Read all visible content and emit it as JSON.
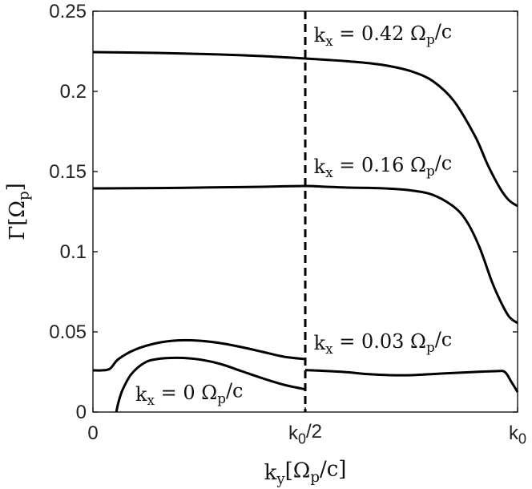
{
  "chart_data": {
    "type": "line",
    "xlabel": "k_y[Ω_p/c]",
    "ylabel": "Γ[Ω_p]",
    "xlim": [
      0,
      1
    ],
    "ylim": [
      0,
      0.25
    ],
    "x_ticks": [
      {
        "value": 0,
        "label": "0"
      },
      {
        "value": 0.5,
        "label": "k0/2"
      },
      {
        "value": 1,
        "label": "k0"
      }
    ],
    "y_ticks": [
      {
        "value": 0,
        "label": "0"
      },
      {
        "value": 0.05,
        "label": "0.05"
      },
      {
        "value": 0.1,
        "label": "0.1"
      },
      {
        "value": 0.15,
        "label": "0.15"
      },
      {
        "value": 0.2,
        "label": "0.2"
      },
      {
        "value": 0.25,
        "label": "0.25"
      }
    ],
    "grid": false,
    "box": true,
    "vline": {
      "x": 0.5,
      "style": "dashed"
    },
    "series": [
      {
        "name": "k_x = 0.42 Ω_p/c",
        "x": [
          0,
          0.1,
          0.2,
          0.3,
          0.4,
          0.5,
          0.55,
          0.6,
          0.65,
          0.7,
          0.75,
          0.8,
          0.85,
          0.9,
          0.93,
          0.96,
          0.98,
          1.0
        ],
        "y": [
          0.2245,
          0.2242,
          0.2237,
          0.223,
          0.222,
          0.2205,
          0.2197,
          0.2188,
          0.2176,
          0.2157,
          0.2125,
          0.2065,
          0.194,
          0.172,
          0.154,
          0.139,
          0.132,
          0.1285
        ]
      },
      {
        "name": "k_x = 0.16 Ω_p/c",
        "x": [
          0,
          0.1,
          0.2,
          0.3,
          0.4,
          0.5,
          0.55,
          0.6,
          0.65,
          0.7,
          0.75,
          0.8,
          0.85,
          0.88,
          0.91,
          0.94,
          0.96,
          0.98,
          1.0
        ],
        "y": [
          0.1395,
          0.1396,
          0.1398,
          0.1402,
          0.1405,
          0.141,
          0.1405,
          0.14,
          0.1398,
          0.1393,
          0.1382,
          0.1355,
          0.128,
          0.119,
          0.103,
          0.081,
          0.069,
          0.0595,
          0.0555
        ]
      },
      {
        "name": "k_x = 0.03 Ω_p/c",
        "x": [
          0,
          0.02,
          0.04,
          0.06,
          0.1,
          0.15,
          0.2,
          0.25,
          0.3,
          0.35,
          0.4,
          0.45,
          0.5,
          0.5,
          0.55,
          0.6,
          0.65,
          0.7,
          0.75,
          0.8,
          0.85,
          0.9,
          0.95,
          0.97,
          0.985,
          1.0
        ],
        "y": [
          0.026,
          0.026,
          0.027,
          0.033,
          0.039,
          0.043,
          0.0447,
          0.0445,
          0.043,
          0.0405,
          0.0375,
          0.0345,
          0.033,
          0.0262,
          0.0256,
          0.0248,
          0.0236,
          0.023,
          0.023,
          0.0237,
          0.0244,
          0.025,
          0.0255,
          0.025,
          0.019,
          0.0125
        ]
      },
      {
        "name": "k_x = 0 Ω_p/c",
        "x": [
          0.055,
          0.06,
          0.07,
          0.09,
          0.12,
          0.15,
          0.2,
          0.25,
          0.3,
          0.35,
          0.4,
          0.45,
          0.5
        ],
        "y": [
          0.0,
          0.006,
          0.014,
          0.0235,
          0.0305,
          0.033,
          0.0338,
          0.0328,
          0.03,
          0.0255,
          0.021,
          0.017,
          0.0142
        ]
      }
    ],
    "annotations": [
      {
        "text": "k_x = 0.42 Ω_p/c",
        "x": 0.52,
        "y": 0.231
      },
      {
        "text": "k_x = 0.16 Ω_p/c",
        "x": 0.52,
        "y": 0.149
      },
      {
        "text": "k_x = 0.03 Ω_p/c",
        "x": 0.52,
        "y": 0.039
      },
      {
        "text": "k_x = 0 Ω_p/c",
        "x": 0.1,
        "y": 0.007
      }
    ]
  }
}
